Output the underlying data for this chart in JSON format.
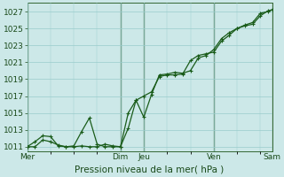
{
  "xlabel": "Pression niveau de la mer( hPa )",
  "bg_color": "#cce8e8",
  "grid_color": "#99cccc",
  "line_color": "#1a5c1a",
  "ylim": [
    1010.5,
    1028.0
  ],
  "yticks": [
    1011,
    1013,
    1015,
    1017,
    1019,
    1021,
    1023,
    1025,
    1027
  ],
  "x_tick_labels": [
    "Mer",
    "Dim",
    "Jeu",
    "Ven",
    "Sam"
  ],
  "x_tick_positions": [
    0,
    96,
    120,
    192,
    252
  ],
  "vline_positions": [
    0,
    96,
    120,
    192,
    252
  ],
  "total_x": 252,
  "line1_x": [
    0,
    8,
    16,
    24,
    32,
    40,
    48,
    56,
    64,
    72,
    80,
    88,
    96,
    104,
    112,
    120,
    128,
    136,
    144,
    152,
    160,
    168,
    176,
    184,
    192,
    200,
    208,
    216,
    224,
    232,
    240,
    248,
    252
  ],
  "line1_y": [
    1011.0,
    1011.6,
    1012.3,
    1012.2,
    1011.1,
    1011.0,
    1011.0,
    1011.1,
    1011.0,
    1011.0,
    1011.3,
    1011.1,
    1011.0,
    1013.2,
    1016.5,
    1017.0,
    1017.5,
    1019.3,
    1019.5,
    1019.5,
    1019.6,
    1021.2,
    1021.8,
    1022.0,
    1022.2,
    1023.5,
    1024.2,
    1025.0,
    1025.3,
    1025.5,
    1026.5,
    1027.1,
    1027.2
  ],
  "line2_x": [
    0,
    8,
    16,
    24,
    32,
    40,
    48,
    56,
    64,
    72,
    80,
    88,
    96,
    104,
    112,
    120,
    128,
    136,
    144,
    152,
    160,
    168,
    176,
    184,
    192,
    200,
    208,
    216,
    224,
    232,
    240,
    248,
    252
  ],
  "line2_y": [
    1011.0,
    1011.0,
    1011.8,
    1011.6,
    1011.2,
    1011.0,
    1011.1,
    1012.8,
    1014.4,
    1011.3,
    1011.0,
    1011.0,
    1011.0,
    1015.0,
    1016.5,
    1014.5,
    1017.2,
    1019.5,
    1019.6,
    1019.8,
    1019.7,
    1020.0,
    1021.5,
    1021.8,
    1022.5,
    1023.8,
    1024.5,
    1025.0,
    1025.4,
    1025.7,
    1026.8,
    1027.0,
    1027.2
  ]
}
